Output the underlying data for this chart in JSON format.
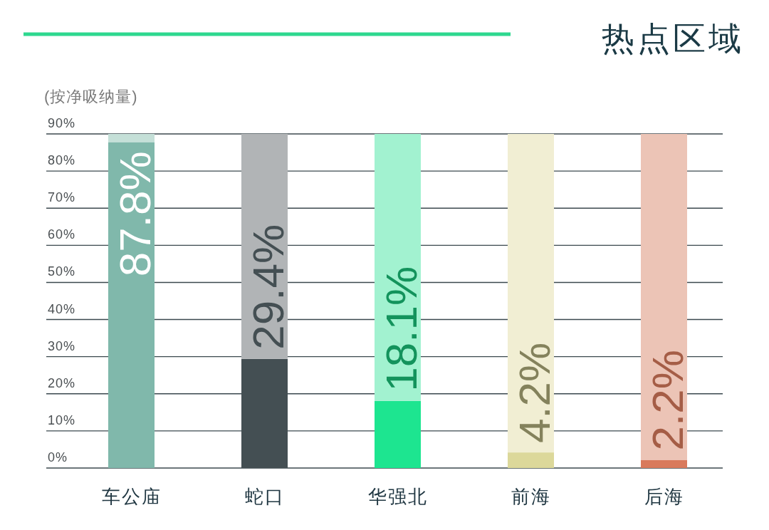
{
  "chart_data": {
    "type": "bar",
    "title": "热点区域",
    "ylabel": "(按净吸纳量)",
    "categories": [
      "车公庙",
      "蛇口",
      "华强北",
      "前海",
      "后海"
    ],
    "stacked": true,
    "series": [
      {
        "colors": [
          "#80b8ab",
          "#444f53",
          "#1de590",
          "#dcd89a",
          "#d97a5c"
        ],
        "values": [
          87.8,
          29.4,
          18.1,
          4.2,
          2.2
        ],
        "value_labels": [
          "87.8%",
          "29.4%",
          "18.1%",
          "4.2%",
          "2.2%"
        ]
      },
      {
        "colors": [
          "#c5e0d8",
          "#b1b4b6",
          "#a2f2d0",
          "#f1eed3",
          "#ecc4b6"
        ],
        "values": [
          2.2,
          60.6,
          71.9,
          85.8,
          87.8
        ]
      }
    ],
    "ylim": [
      0,
      90
    ],
    "yticks": [
      {
        "value": 0,
        "label": "0%"
      },
      {
        "value": 10,
        "label": "10%"
      },
      {
        "value": 20,
        "label": "20%"
      },
      {
        "value": 30,
        "label": "30%"
      },
      {
        "value": 40,
        "label": "40%"
      },
      {
        "value": 50,
        "label": "50%"
      },
      {
        "value": 60,
        "label": "60%"
      },
      {
        "value": 70,
        "label": "70%"
      },
      {
        "value": 80,
        "label": "80%"
      },
      {
        "value": 90,
        "label": "90%"
      }
    ],
    "grid": "y"
  }
}
